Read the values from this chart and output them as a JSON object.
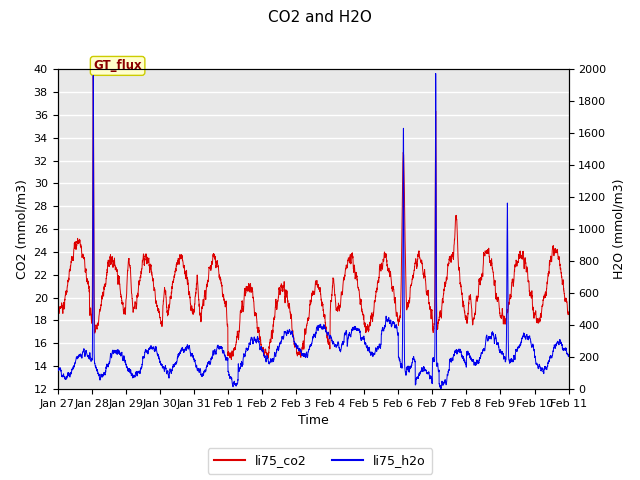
{
  "title": "CO2 and H2O",
  "xlabel": "Time",
  "ylabel_left": "CO2 (mmol/m3)",
  "ylabel_right": "H2O (mmol/m3)",
  "ylim_left": [
    12,
    40
  ],
  "ylim_right": [
    0,
    2000
  ],
  "yticks_left": [
    12,
    14,
    16,
    18,
    20,
    22,
    24,
    26,
    28,
    30,
    32,
    34,
    36,
    38,
    40
  ],
  "yticks_right": [
    0,
    200,
    400,
    600,
    800,
    1000,
    1200,
    1400,
    1600,
    1800,
    2000
  ],
  "xtick_labels": [
    "Jan 27",
    "Jan 28",
    "Jan 29",
    "Jan 30",
    "Jan 31",
    "Feb 1",
    "Feb 2",
    "Feb 3",
    "Feb 4",
    "Feb 5",
    "Feb 6",
    "Feb 7",
    "Feb 8",
    "Feb 9",
    "Feb 10",
    "Feb 11"
  ],
  "color_co2": "#dd0000",
  "color_h2o": "#0000ee",
  "annotation_text": "GT_flux",
  "annotation_color": "#8b0000",
  "annotation_bg": "#ffffcc",
  "plot_bg": "#e8e8e8",
  "grid_color": "#ffffff",
  "legend_co2": "li75_co2",
  "legend_h2o": "li75_h2o"
}
